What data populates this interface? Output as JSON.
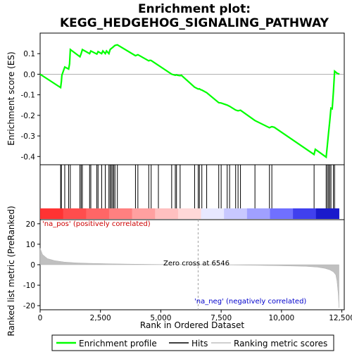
{
  "chart_data": {
    "type": "line",
    "title_line1": "Enrichment plot:",
    "title_line2": "KEGG_HEDGEHOG_SIGNALING_PATHWAY",
    "top_panel": {
      "ylabel": "Enrichment score (ES)",
      "ylim": [
        -0.44,
        0.2
      ],
      "yticks": [
        0.1,
        0.0,
        -0.1,
        -0.2,
        -0.3,
        -0.4
      ],
      "ytick_labels": [
        "0.1",
        "0.0",
        "-0.1",
        "-0.2",
        "-0.3",
        "-0.4"
      ],
      "color": "#00ff00",
      "series_name": "Enrichment profile",
      "x": [
        0,
        850,
        880,
        900,
        1020,
        1180,
        1220,
        1250,
        1650,
        1700,
        1750,
        2050,
        2100,
        2350,
        2400,
        2550,
        2600,
        2700,
        2750,
        2850,
        2900,
        2950,
        3000,
        3050,
        3100,
        3200,
        3950,
        4050,
        4500,
        4550,
        4600,
        5450,
        5600,
        5650,
        5700,
        5800,
        5850,
        6400,
        6550,
        6600,
        6650,
        6700,
        6900,
        7400,
        7500,
        7750,
        7850,
        8100,
        8200,
        8300,
        8900,
        9500,
        9600,
        9700,
        11350,
        11400,
        11850,
        11900,
        11950,
        12000,
        12050,
        12100,
        12150,
        12200,
        12250,
        12300,
        12400
      ],
      "y": [
        0.0,
        -0.065,
        -0.035,
        -0.005,
        0.035,
        0.025,
        0.05,
        0.12,
        0.085,
        0.1,
        0.12,
        0.1,
        0.113,
        0.098,
        0.11,
        0.1,
        0.113,
        0.1,
        0.113,
        0.1,
        0.12,
        0.125,
        0.13,
        0.135,
        0.14,
        0.143,
        0.09,
        0.095,
        0.065,
        0.068,
        0.067,
        0.0,
        -0.005,
        -0.003,
        -0.005,
        -0.007,
        -0.005,
        -0.063,
        -0.072,
        -0.071,
        -0.075,
        -0.077,
        -0.09,
        -0.138,
        -0.14,
        -0.15,
        -0.156,
        -0.174,
        -0.178,
        -0.175,
        -0.225,
        -0.26,
        -0.255,
        -0.258,
        -0.39,
        -0.365,
        -0.403,
        -0.345,
        -0.285,
        -0.228,
        -0.165,
        -0.168,
        -0.085,
        0.015,
        0.01,
        0.005,
        0.0
      ]
    },
    "hits_panel": {
      "series_name": "Hits",
      "hit_positions": [
        850,
        880,
        1020,
        1180,
        1250,
        1650,
        1700,
        1750,
        2050,
        2100,
        2350,
        2400,
        2550,
        2700,
        2850,
        2900,
        2950,
        3000,
        3050,
        3100,
        3200,
        3950,
        4050,
        4500,
        4600,
        4900,
        5450,
        5600,
        5650,
        5800,
        6400,
        6550,
        6600,
        6700,
        6900,
        7400,
        7500,
        7750,
        7850,
        8100,
        8200,
        8300,
        8900,
        9500,
        9600,
        11350,
        11850,
        11900,
        11950,
        12000,
        12050,
        12150,
        12200
      ],
      "heatmap_colors": [
        "#ff3333",
        "#ff4d4d",
        "#ff6666",
        "#ff8080",
        "#ffa0a0",
        "#ffc0c0",
        "#ffd8d8",
        "#e8e8ff",
        "#c8c8ff",
        "#a0a0ff",
        "#7070ff",
        "#4040ee",
        "#1a1acc"
      ]
    },
    "bottom_panel": {
      "ylabel": "Ranked list metric (PreRanked)",
      "xlabel": "Rank in Ordered Dataset",
      "ylim": [
        -22,
        22
      ],
      "yticks": [
        20,
        10,
        0,
        -10,
        -20
      ],
      "ytick_labels": [
        "20",
        "10",
        "0",
        "-10",
        "-20"
      ],
      "xlim": [
        0,
        12600
      ],
      "xticks": [
        0,
        2500,
        5000,
        7500,
        10000,
        12500
      ],
      "xtick_labels": [
        "0",
        "2,500",
        "5,000",
        "7,500",
        "10,000",
        "12,500"
      ],
      "series_name": "Ranking metric scores",
      "color": "#c0c0c0",
      "x": [
        0,
        100,
        300,
        600,
        1000,
        1500,
        2000,
        3000,
        4000,
        5000,
        6000,
        6546,
        7000,
        8000,
        9000,
        10000,
        11000,
        11500,
        11800,
        12000,
        12150,
        12250,
        12300,
        12350,
        12380
      ],
      "y": [
        8,
        5,
        3,
        2,
        1.3,
        0.9,
        0.7,
        0.4,
        0.25,
        0.1,
        0.03,
        0,
        -0.05,
        -0.15,
        -0.3,
        -0.5,
        -0.8,
        -1.2,
        -1.8,
        -2.5,
        -3.5,
        -5,
        -8,
        -14,
        -21
      ]
    },
    "annotations": {
      "pos_label": "'na_pos' (positively correlated)",
      "neg_label": "'na_neg' (negatively correlated)",
      "zero_cross": "Zero cross at 6546",
      "zero_cross_rank": 6546
    },
    "legend": [
      {
        "label": "Enrichment profile",
        "color": "#00ff00"
      },
      {
        "label": "Hits",
        "color": "#000000"
      },
      {
        "label": "Ranking metric scores",
        "color": "#c0c0c0"
      }
    ]
  }
}
